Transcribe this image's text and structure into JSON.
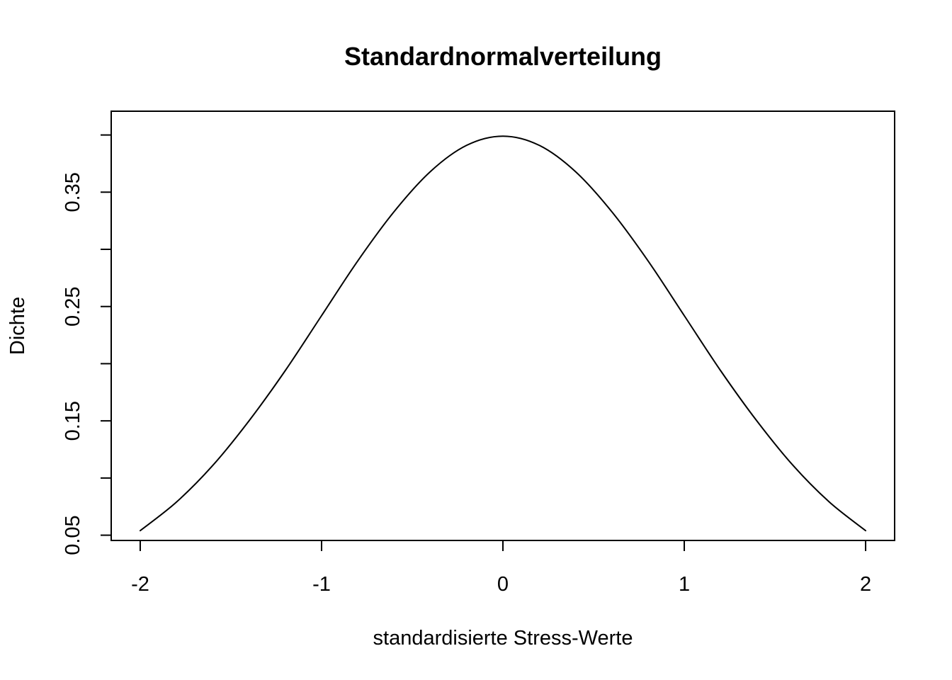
{
  "chart_data": {
    "type": "line",
    "title": "Standardnormalverteilung",
    "xlabel": "standardisierte Stress-Werte",
    "ylabel": "Dichte",
    "xlim": [
      -2.16,
      2.16
    ],
    "ylim": [
      0.0454,
      0.4208
    ],
    "x_ticks": [
      -2,
      -1,
      0,
      1,
      2
    ],
    "x_tick_labels": [
      "-2",
      "-1",
      "0",
      "1",
      "2"
    ],
    "y_ticks": [
      0.05,
      0.1,
      0.15,
      0.2,
      0.25,
      0.3,
      0.35,
      0.4
    ],
    "y_tick_labels": [
      "0.05",
      "",
      "0.15",
      "",
      "0.25",
      "",
      "0.35",
      ""
    ],
    "grid": false,
    "legend": "none",
    "series": [
      {
        "color": "#000000",
        "x": [
          -2.0,
          -1.8,
          -1.6,
          -1.4,
          -1.2,
          -1.0,
          -0.8,
          -0.6,
          -0.4,
          -0.2,
          0.0,
          0.2,
          0.4,
          0.6,
          0.8,
          1.0,
          1.2,
          1.4,
          1.6,
          1.8,
          2.0
        ],
        "y": [
          0.054,
          0.079,
          0.111,
          0.15,
          0.194,
          0.242,
          0.29,
          0.333,
          0.368,
          0.391,
          0.399,
          0.391,
          0.368,
          0.333,
          0.29,
          0.242,
          0.194,
          0.15,
          0.111,
          0.079,
          0.054
        ]
      }
    ]
  }
}
